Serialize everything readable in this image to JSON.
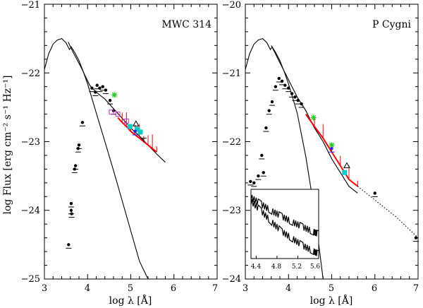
{
  "chart_data": [
    {
      "type": "scatter",
      "title": "MWC 314",
      "xlabel": "log λ [Å]",
      "ylabel": "log Flux  [erg cm⁻² s⁻¹ Hz⁻¹]",
      "xlim": [
        3,
        7
      ],
      "ylim": [
        -25,
        -21
      ],
      "xticks": [
        "3",
        "4",
        "5",
        "6",
        "7"
      ],
      "yticks": [
        "−25",
        "−24",
        "−23",
        "−22",
        "−21"
      ],
      "colors": {
        "photometry": "#000000",
        "iue": "#ff0000",
        "green": "#22cc22",
        "cyan": "#00cccc",
        "magenta": "#cc33cc",
        "blue": "#2222ee"
      },
      "series": [
        {
          "name": "blackbody_model",
          "style": "line",
          "x": [
            3.0,
            3.1,
            3.2,
            3.3,
            3.4,
            3.5,
            3.58,
            3.62,
            3.7,
            3.8,
            3.9,
            4.0,
            4.2,
            4.4,
            4.6,
            4.8,
            5.0,
            5.2,
            5.4,
            5.6
          ],
          "y": [
            -21.95,
            -21.72,
            -21.58,
            -21.52,
            -21.5,
            -21.56,
            -21.66,
            -21.62,
            -21.7,
            -21.82,
            -21.98,
            -22.16,
            -22.58,
            -23.0,
            -23.42,
            -23.86,
            -24.3,
            -24.74,
            -25.1,
            -25.5
          ]
        },
        {
          "name": "reddened_model",
          "style": "line",
          "x": [
            3.55,
            3.65,
            3.75,
            3.85,
            3.95,
            4.05,
            4.2,
            4.4,
            4.6,
            4.8,
            5.0,
            5.2,
            5.4,
            5.6,
            5.8
          ],
          "y": [
            -21.55,
            -21.68,
            -21.8,
            -21.92,
            -22.05,
            -22.18,
            -22.28,
            -22.38,
            -22.52,
            -22.66,
            -22.8,
            -22.92,
            -23.05,
            -23.18,
            -23.3
          ]
        },
        {
          "name": "photometry",
          "style": "points",
          "color": "#000000",
          "x": [
            3.56,
            3.62,
            3.62,
            3.63,
            3.7,
            3.72,
            3.78,
            3.8,
            3.88,
            4.1,
            4.18,
            4.22,
            4.28,
            4.35,
            4.42,
            4.52,
            4.6
          ],
          "y": [
            -24.5,
            -24.0,
            -23.9,
            -24.05,
            -23.4,
            -23.35,
            -23.1,
            -23.05,
            -22.72,
            -22.22,
            -22.28,
            -22.18,
            -22.22,
            -22.2,
            -22.25,
            -22.4,
            -22.55
          ]
        },
        {
          "name": "iue_spectrum",
          "style": "line",
          "color": "#ff0000",
          "x": [
            4.7,
            4.8,
            4.9,
            5.0,
            5.1,
            5.2,
            5.3,
            5.4,
            5.5,
            5.6
          ],
          "y": [
            -22.65,
            -22.72,
            -22.78,
            -22.85,
            -22.9,
            -22.95,
            -23.0,
            -23.05,
            -23.1,
            -23.15
          ]
        },
        {
          "name": "green",
          "style": "points",
          "color": "#22cc22",
          "x": [
            4.62
          ],
          "y": [
            -22.32
          ]
        },
        {
          "name": "cyan",
          "style": "points",
          "color": "#00cccc",
          "x": [
            4.98,
            5.15,
            5.22
          ],
          "y": [
            -22.78,
            -22.82,
            -22.86
          ]
        },
        {
          "name": "magenta",
          "style": "points",
          "color": "#cc33cc",
          "x": [
            4.55,
            4.7,
            4.9
          ],
          "y": [
            -22.57,
            -22.6,
            -22.7
          ]
        },
        {
          "name": "blue",
          "style": "points",
          "color": "#2222ee",
          "x": [
            5.1
          ],
          "y": [
            -22.85
          ]
        },
        {
          "name": "open_triangle",
          "style": "points",
          "color": "#000000",
          "x": [
            5.12
          ],
          "y": [
            -22.74
          ]
        },
        {
          "name": "upper_limit",
          "style": "points",
          "color": "#000000",
          "x": [
            5.3
          ],
          "y": [
            -22.95
          ]
        }
      ]
    },
    {
      "type": "scatter",
      "title": "P Cygni",
      "xlabel": "log λ [Å]",
      "ylabel": "",
      "xlim": [
        3,
        7
      ],
      "ylim": [
        -24,
        -20
      ],
      "xticks": [
        "3",
        "4",
        "5",
        "6",
        "7"
      ],
      "yticks": [
        "−24",
        "−23",
        "−22",
        "−21",
        "−20"
      ],
      "colors": {
        "photometry": "#000000",
        "iue": "#ff0000",
        "green": "#22cc22",
        "cyan": "#00cccc",
        "magenta": "#cc33cc",
        "blue": "#2222ee"
      },
      "series": [
        {
          "name": "blackbody_model",
          "style": "line",
          "x": [
            3.0,
            3.1,
            3.2,
            3.3,
            3.4,
            3.5,
            3.58,
            3.62,
            3.7,
            3.8,
            3.9,
            4.0,
            4.2,
            4.4,
            4.6,
            4.8
          ],
          "y": [
            -20.95,
            -20.72,
            -20.58,
            -20.52,
            -20.5,
            -20.56,
            -20.66,
            -20.62,
            -20.7,
            -20.82,
            -20.98,
            -21.16,
            -21.58,
            -22.22,
            -23.0,
            -24.05
          ]
        },
        {
          "name": "reddened_model",
          "style": "line",
          "x": [
            3.6,
            3.8,
            4.0,
            4.2,
            4.4,
            4.6,
            4.8,
            5.0,
            5.2,
            5.4,
            5.6
          ],
          "y": [
            -20.6,
            -20.85,
            -21.1,
            -21.35,
            -21.55,
            -21.8,
            -22.0,
            -22.25,
            -22.45,
            -22.65,
            -22.75
          ]
        },
        {
          "name": "photometry",
          "style": "points",
          "color": "#000000",
          "x": [
            3.12,
            3.2,
            3.3,
            3.38,
            3.42,
            3.48,
            3.55,
            3.62,
            3.7,
            3.78,
            3.85,
            3.92,
            4.0,
            4.08,
            4.15,
            4.22,
            4.3
          ],
          "y": [
            -22.58,
            -22.6,
            -22.5,
            -22.2,
            -22.45,
            -21.8,
            -21.55,
            -21.42,
            -21.2,
            -21.08,
            -21.12,
            -21.18,
            -21.22,
            -21.3,
            -21.35,
            -21.4,
            -21.45
          ]
        },
        {
          "name": "iue_spectrum",
          "style": "line",
          "color": "#ff0000",
          "x": [
            4.4,
            4.6,
            4.8,
            5.0,
            5.2,
            5.4,
            5.6
          ],
          "y": [
            -21.6,
            -21.78,
            -21.95,
            -22.15,
            -22.35,
            -22.55,
            -22.65
          ]
        },
        {
          "name": "green",
          "style": "points",
          "color": "#22cc22",
          "x": [
            4.58,
            5.0
          ],
          "y": [
            -21.65,
            -22.05
          ]
        },
        {
          "name": "cyan",
          "style": "points",
          "color": "#00cccc",
          "x": [
            5.3
          ],
          "y": [
            -22.45
          ]
        },
        {
          "name": "blue",
          "style": "points",
          "color": "#2222ee",
          "x": [
            5.0
          ],
          "y": [
            -22.1
          ]
        },
        {
          "name": "open_triangle",
          "style": "points",
          "color": "#000000",
          "x": [
            5.35
          ],
          "y": [
            -22.35
          ]
        },
        {
          "name": "radio_extension",
          "style": "dotted",
          "color": "#000000",
          "x": [
            5.6,
            6.0,
            6.5,
            7.0
          ],
          "y": [
            -22.65,
            -22.85,
            -23.1,
            -23.4
          ]
        },
        {
          "name": "radio_points",
          "style": "points",
          "color": "#000000",
          "x": [
            6.0,
            6.95
          ],
          "y": [
            -22.75,
            -23.4
          ]
        }
      ],
      "inset": {
        "xticks": [
          "4.4",
          "4.8",
          "5.2",
          "5.6"
        ],
        "xlim": [
          4.3,
          5.6
        ],
        "series": [
          {
            "name": "upper_spectrum",
            "style": "line",
            "color": "#000000",
            "x": [
              4.3,
              4.5,
              4.7,
              4.9,
              5.1,
              5.3,
              5.5,
              5.6
            ],
            "y": [
              0.88,
              0.78,
              0.68,
              0.6,
              0.52,
              0.45,
              0.38,
              0.35
            ]
          },
          {
            "name": "lower_spectrum",
            "style": "line",
            "color": "#000000",
            "x": [
              4.3,
              4.5,
              4.7,
              4.9,
              5.1,
              5.3,
              5.5,
              5.6
            ],
            "y": [
              0.82,
              0.68,
              0.52,
              0.38,
              0.28,
              0.18,
              0.1,
              0.06
            ]
          }
        ]
      }
    }
  ]
}
